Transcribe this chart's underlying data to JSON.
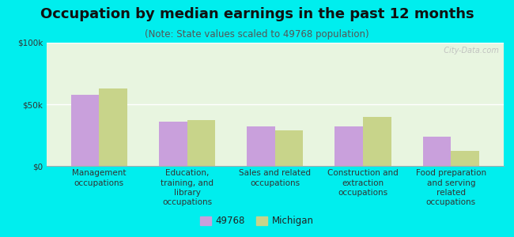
{
  "title": "Occupation by median earnings in the past 12 months",
  "subtitle": "(Note: State values scaled to 49768 population)",
  "categories": [
    "Management\noccupations",
    "Education,\ntraining, and\nlibrary\noccupations",
    "Sales and related\noccupations",
    "Construction and\nextraction\noccupations",
    "Food preparation\nand serving\nrelated\noccupations"
  ],
  "values_49768": [
    58000,
    36000,
    32000,
    32000,
    24000
  ],
  "values_michigan": [
    63000,
    37000,
    29000,
    40000,
    12000
  ],
  "color_49768": "#c9a0dc",
  "color_michigan": "#c8d48a",
  "background_color": "#00eeee",
  "plot_bg_top": "#e8f5e0",
  "plot_bg_bottom": "#f8fff8",
  "ylim": [
    0,
    100000
  ],
  "yticks": [
    0,
    50000,
    100000
  ],
  "ytick_labels": [
    "$0",
    "$50k",
    "$100k"
  ],
  "legend_labels": [
    "49768",
    "Michigan"
  ],
  "bar_width": 0.32,
  "title_fontsize": 13,
  "subtitle_fontsize": 8.5,
  "tick_fontsize": 7.5,
  "legend_fontsize": 8.5,
  "watermark_text": "  City-Data.com"
}
